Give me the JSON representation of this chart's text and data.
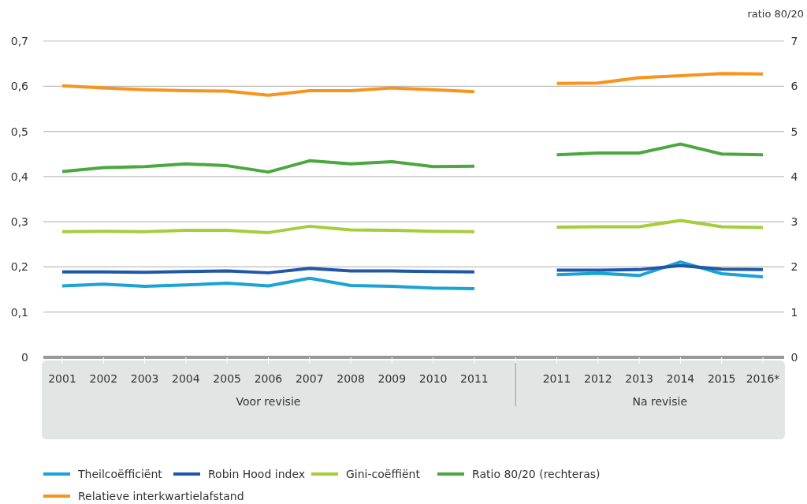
{
  "chart_data": {
    "type": "line",
    "y2label": "ratio 80/20",
    "categories": [
      "2001",
      "2002",
      "2003",
      "2004",
      "2005",
      "2006",
      "2007",
      "2008",
      "2009",
      "2010",
      "2011",
      null,
      "2011",
      "2012",
      "2013",
      "2014",
      "2015",
      "2016*"
    ],
    "ylim": [
      0,
      0.7
    ],
    "yticks": [
      {
        "value": 0,
        "label": "0"
      },
      {
        "value": 0.1,
        "label": "0,1"
      },
      {
        "value": 0.2,
        "label": "0,2"
      },
      {
        "value": 0.3,
        "label": "0,3"
      },
      {
        "value": 0.4,
        "label": "0,4"
      },
      {
        "value": 0.5,
        "label": "0,5"
      },
      {
        "value": 0.6,
        "label": "0,6"
      },
      {
        "value": 0.7,
        "label": "0,7"
      }
    ],
    "y2lim": [
      0,
      7
    ],
    "y2ticks": [
      0,
      1,
      2,
      3,
      4,
      5,
      6,
      7
    ],
    "grid": "y",
    "legend": "bottom",
    "line_style": "solid",
    "annotations": [
      "Voor revisie",
      "Na revisie"
    ],
    "series": [
      {
        "name": "Theilcoëfficiënt",
        "color": "#1aa3d4",
        "values": [
          0.158,
          0.162,
          0.157,
          0.16,
          0.164,
          0.158,
          0.175,
          0.159,
          0.157,
          0.153,
          0.152,
          null,
          0.183,
          0.186,
          0.181,
          0.211,
          0.185,
          0.178
        ]
      },
      {
        "name": "Robin Hood index",
        "color": "#2058a8",
        "values": [
          0.189,
          0.189,
          0.188,
          0.19,
          0.191,
          0.187,
          0.197,
          0.191,
          0.191,
          0.19,
          0.189,
          null,
          0.193,
          0.193,
          0.194,
          0.203,
          0.195,
          0.194
        ]
      },
      {
        "name": "Gini-coëffiënt",
        "color": "#a6cd3a",
        "values": [
          0.278,
          0.279,
          0.278,
          0.281,
          0.281,
          0.276,
          0.29,
          0.282,
          0.281,
          0.279,
          0.278,
          null,
          0.288,
          0.289,
          0.289,
          0.303,
          0.289,
          0.287
        ]
      },
      {
        "name": "Ratio 80/20 (rechteras)",
        "color": "#4aa83e",
        "axis": "y2",
        "values": [
          4.11,
          4.2,
          4.22,
          4.28,
          4.24,
          4.1,
          4.35,
          4.28,
          4.33,
          4.22,
          4.23,
          null,
          4.48,
          4.52,
          4.52,
          4.72,
          4.5,
          4.48
        ]
      },
      {
        "name": "Relatieve interkwartielafstand",
        "color": "#f7941d",
        "values": [
          0.601,
          0.596,
          0.592,
          0.59,
          0.589,
          0.58,
          0.59,
          0.59,
          0.596,
          0.592,
          0.588,
          null,
          0.606,
          0.607,
          0.619,
          0.623,
          0.628,
          0.627
        ]
      }
    ]
  }
}
